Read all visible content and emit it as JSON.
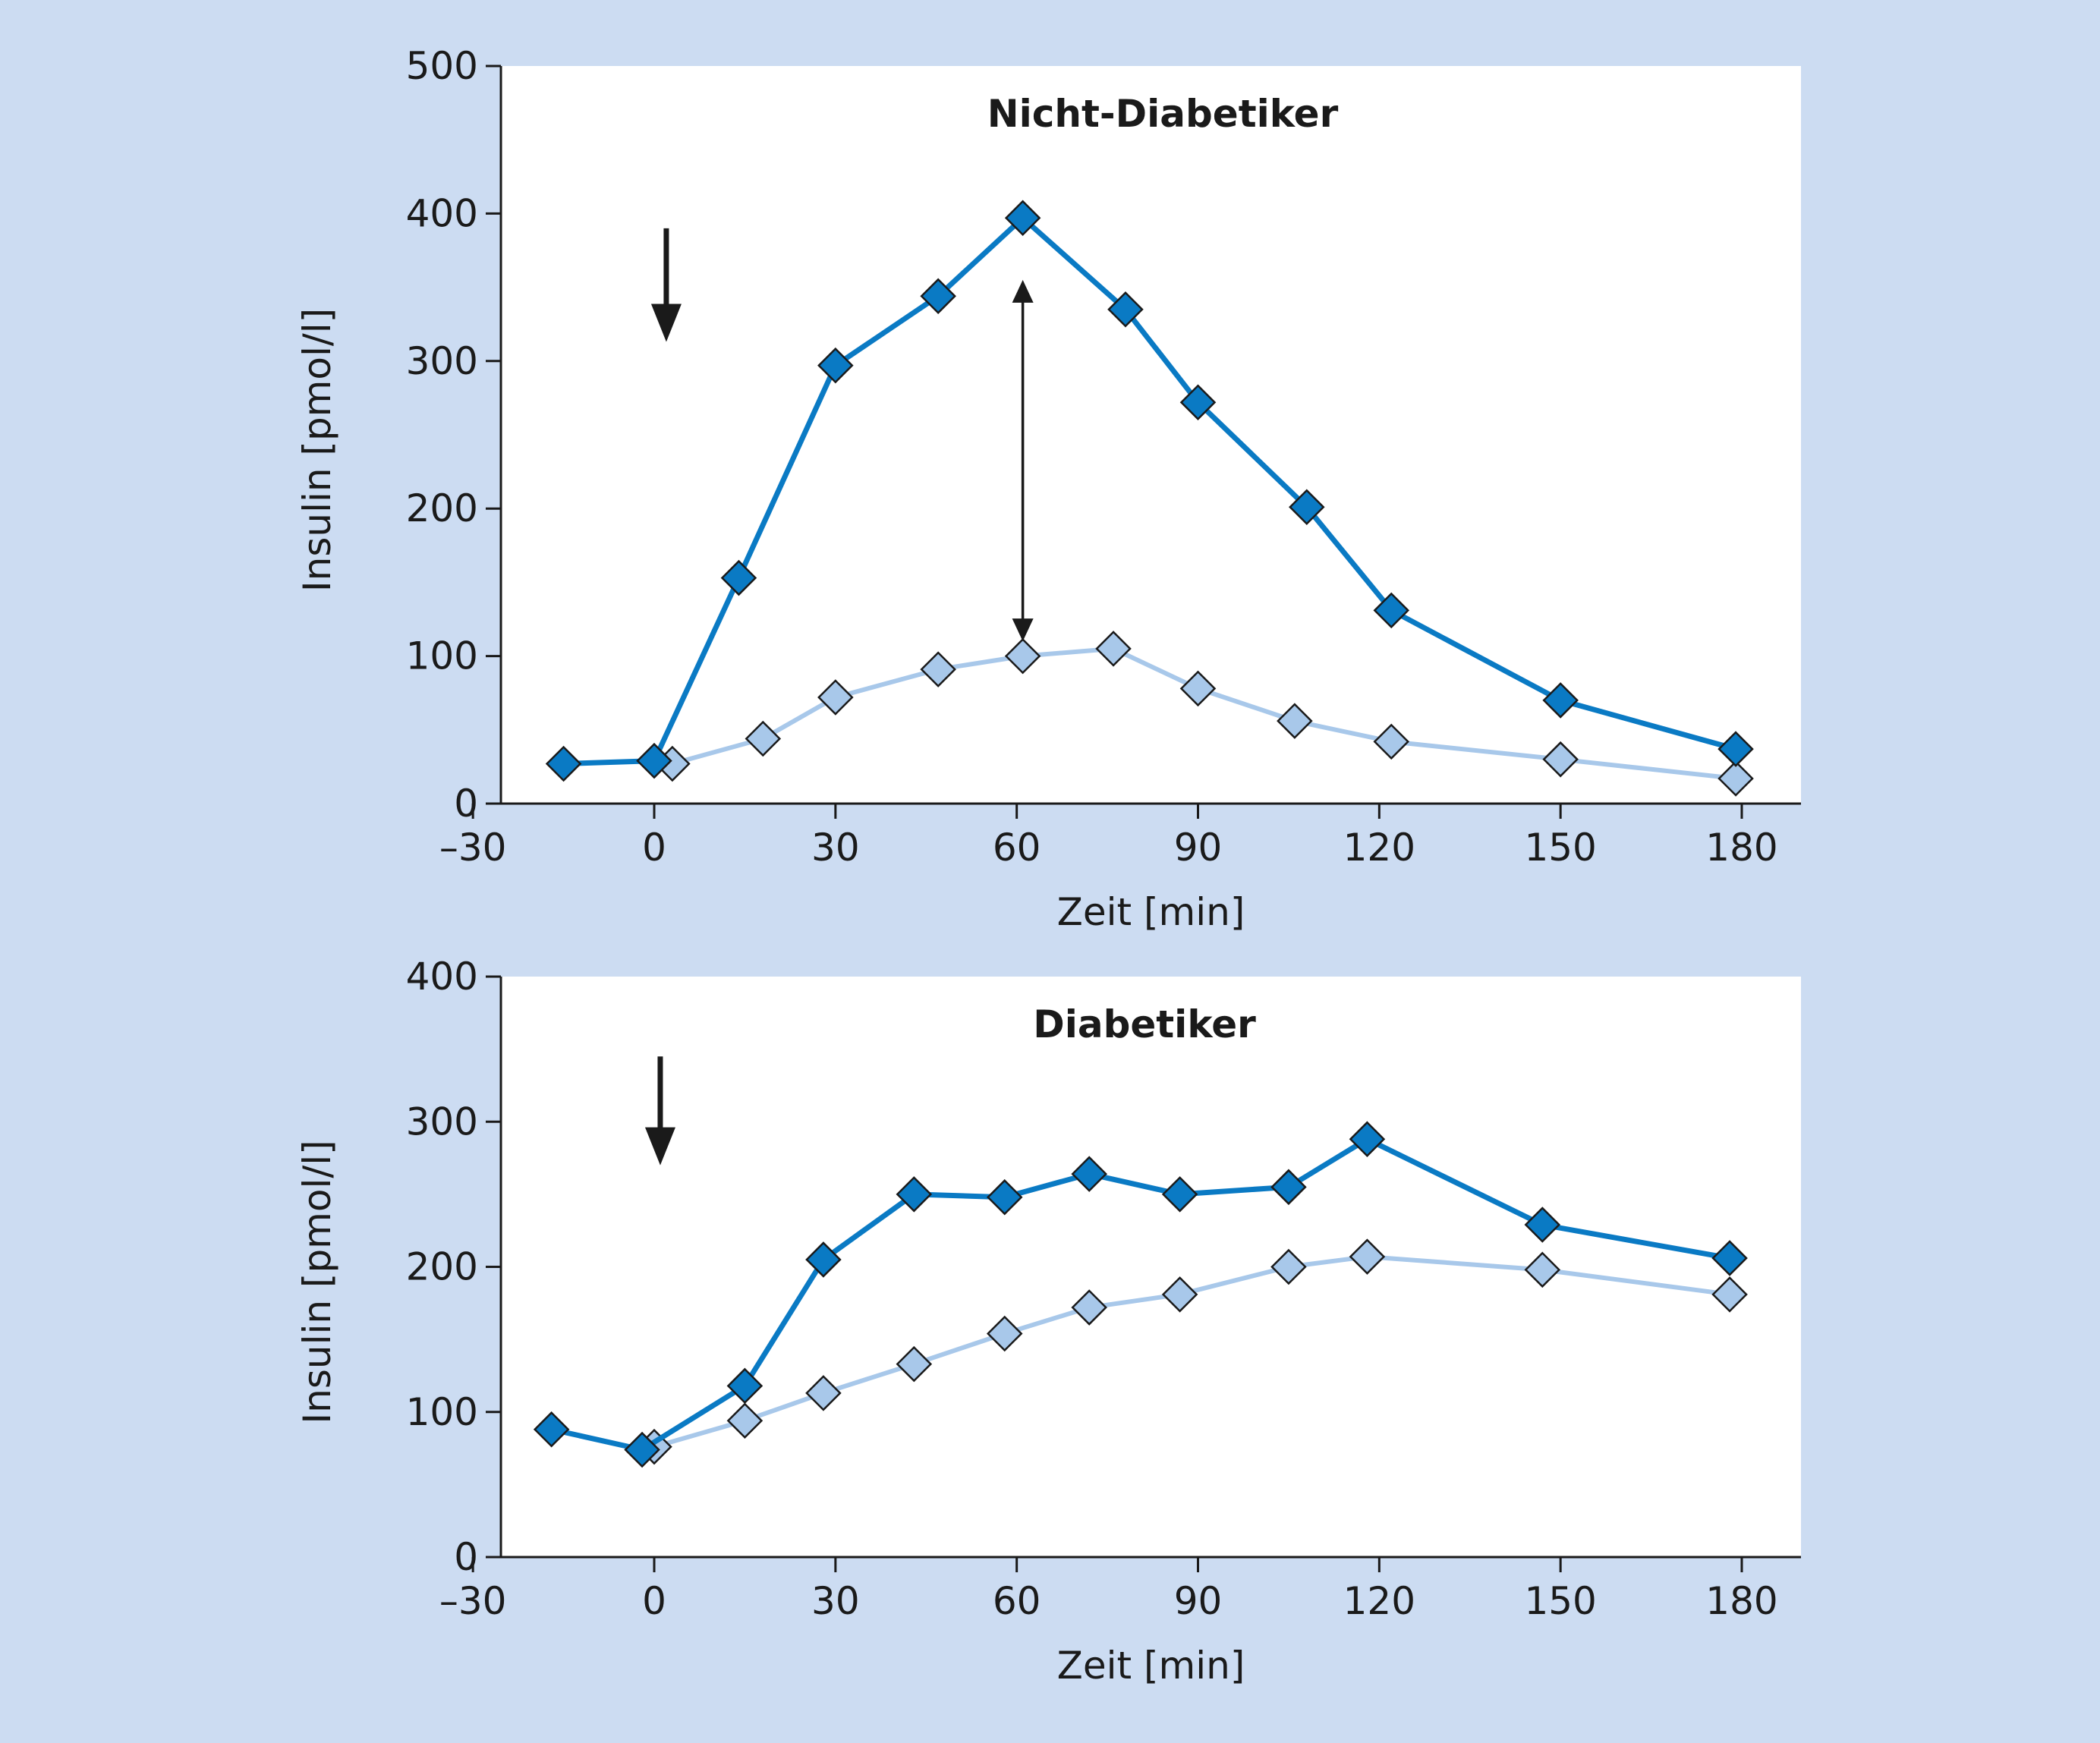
{
  "colors": {
    "background": "#ccdcf2",
    "plot_bg": "#ffffff",
    "series_dark": "#0a7ac4",
    "series_light": "#a8c8ea",
    "axis": "#1a1a1a"
  },
  "chart_data": [
    {
      "type": "line",
      "title": "Nicht-Diabetiker",
      "xlabel": "Zeit [min]",
      "ylabel": "Insulin [pmol/l]",
      "xlim": [
        -30,
        185
      ],
      "ylim": [
        0,
        500
      ],
      "x_ticks": [
        -30,
        0,
        30,
        60,
        90,
        120,
        150,
        180
      ],
      "x_tick_labels": [
        "–30",
        "0",
        "30",
        "60",
        "90",
        "120",
        "150",
        "180"
      ],
      "y_ticks": [
        0,
        100,
        200,
        300,
        400,
        500
      ],
      "y_tick_labels": [
        "0",
        "100",
        "200",
        "300",
        "400",
        "500"
      ],
      "grid": false,
      "series": [
        {
          "style": "dark",
          "points": [
            {
              "x": -15,
              "y": 27
            },
            {
              "x": 0,
              "y": 29
            },
            {
              "x": 14,
              "y": 153
            },
            {
              "x": 30,
              "y": 297
            },
            {
              "x": 47,
              "y": 344
            },
            {
              "x": 61,
              "y": 397
            },
            {
              "x": 78,
              "y": 335
            },
            {
              "x": 90,
              "y": 272
            },
            {
              "x": 108,
              "y": 201
            },
            {
              "x": 122,
              "y": 131
            },
            {
              "x": 150,
              "y": 70
            },
            {
              "x": 179,
              "y": 37
            }
          ]
        },
        {
          "style": "light",
          "points": [
            {
              "x": 3,
              "y": 27
            },
            {
              "x": 18,
              "y": 44
            },
            {
              "x": 30,
              "y": 72
            },
            {
              "x": 47,
              "y": 91
            },
            {
              "x": 61,
              "y": 100
            },
            {
              "x": 76,
              "y": 105
            },
            {
              "x": 90,
              "y": 78
            },
            {
              "x": 106,
              "y": 56
            },
            {
              "x": 122,
              "y": 42
            },
            {
              "x": 150,
              "y": 30
            },
            {
              "x": 179,
              "y": 17
            }
          ]
        }
      ],
      "annotations": [
        {
          "kind": "down-arrow",
          "x": 2,
          "y_top": 390,
          "y_bottom": 313
        },
        {
          "kind": "double-arrow",
          "x": 61,
          "y_top": 355,
          "y_bottom": 110
        }
      ]
    },
    {
      "type": "line",
      "title": "Diabetiker",
      "xlabel": "Zeit [min]",
      "ylabel": "Insulin [pmol/l]",
      "xlim": [
        -30,
        185
      ],
      "ylim": [
        0,
        400
      ],
      "x_ticks": [
        -30,
        0,
        30,
        60,
        90,
        120,
        150,
        180
      ],
      "x_tick_labels": [
        "–30",
        "0",
        "30",
        "60",
        "90",
        "120",
        "150",
        "180"
      ],
      "y_ticks": [
        0,
        100,
        200,
        300,
        400
      ],
      "y_tick_labels": [
        "0",
        "100",
        "200",
        "300",
        "400"
      ],
      "grid": false,
      "series": [
        {
          "style": "dark",
          "points": [
            {
              "x": -17,
              "y": 88
            },
            {
              "x": -2,
              "y": 74
            },
            {
              "x": 15,
              "y": 118
            },
            {
              "x": 28,
              "y": 205
            },
            {
              "x": 43,
              "y": 250
            },
            {
              "x": 58,
              "y": 248
            },
            {
              "x": 72,
              "y": 264
            },
            {
              "x": 87,
              "y": 250
            },
            {
              "x": 105,
              "y": 255
            },
            {
              "x": 118,
              "y": 288
            },
            {
              "x": 147,
              "y": 229
            },
            {
              "x": 178,
              "y": 206
            }
          ]
        },
        {
          "style": "light",
          "points": [
            {
              "x": 0,
              "y": 76
            },
            {
              "x": 15,
              "y": 94
            },
            {
              "x": 28,
              "y": 113
            },
            {
              "x": 43,
              "y": 133
            },
            {
              "x": 58,
              "y": 154
            },
            {
              "x": 72,
              "y": 172
            },
            {
              "x": 87,
              "y": 181
            },
            {
              "x": 105,
              "y": 200
            },
            {
              "x": 118,
              "y": 207
            },
            {
              "x": 147,
              "y": 198
            },
            {
              "x": 178,
              "y": 181
            }
          ]
        }
      ],
      "annotations": [
        {
          "kind": "down-arrow",
          "x": 1,
          "y_top": 345,
          "y_bottom": 270
        }
      ]
    }
  ]
}
